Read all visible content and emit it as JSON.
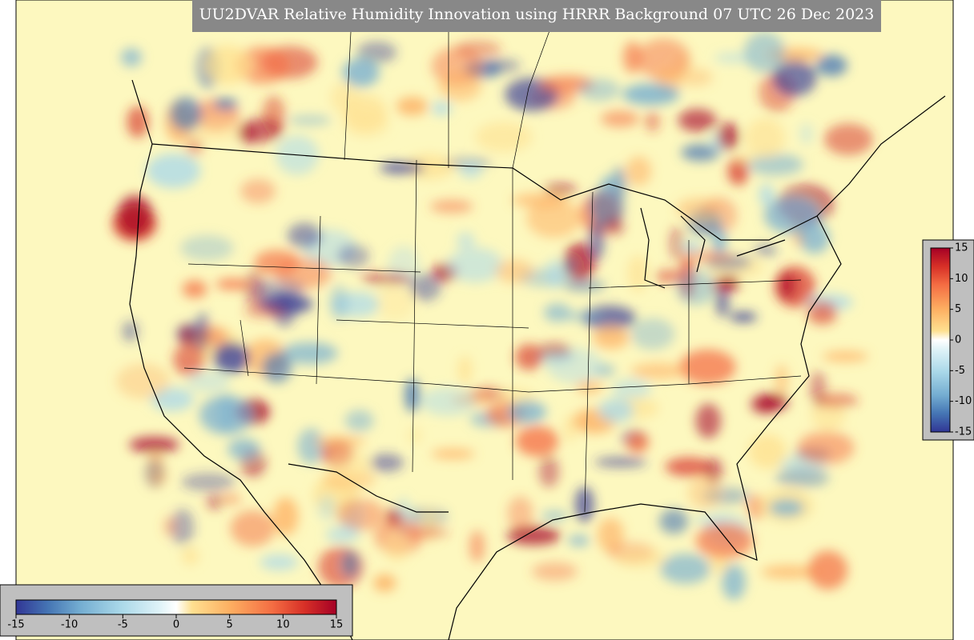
{
  "title": "UU2DVAR Relative Humidity Innovation using HRRR Background 07 UTC 26 Dec 2023",
  "horizontal_colorbar": {
    "lim": [
      -15,
      15
    ],
    "ticks": [
      -15,
      -10,
      -5,
      0,
      5,
      10,
      15
    ]
  },
  "vertical_colorbar": {
    "lim": [
      -15,
      15
    ],
    "ticks": [
      -15,
      -10,
      -5,
      0,
      5,
      10,
      15
    ]
  }
}
